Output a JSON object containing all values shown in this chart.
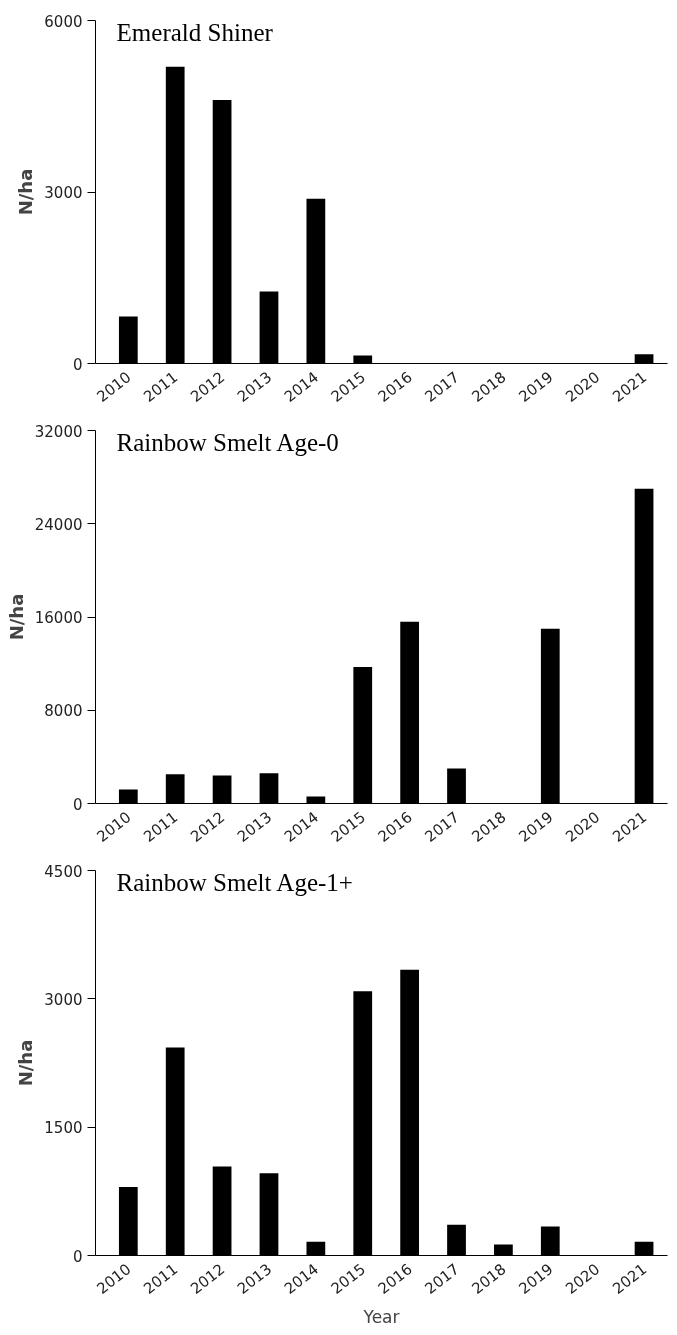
{
  "chart_data": [
    {
      "type": "bar",
      "title": "Emerald Shiner",
      "ylabel": "N/ha",
      "categories": [
        "2010",
        "2011",
        "2012",
        "2013",
        "2014",
        "2015",
        "2016",
        "2017",
        "2018",
        "2019",
        "2020",
        "2021"
      ],
      "values": [
        820,
        5190,
        4610,
        1260,
        2880,
        140,
        0,
        0,
        0,
        0,
        0,
        160
      ],
      "color": "#000000",
      "ylim": [
        0,
        6000
      ],
      "yticks": [
        0,
        3000,
        6000
      ]
    },
    {
      "type": "bar",
      "title": "Rainbow Smelt Age-0",
      "ylabel": "N/ha",
      "categories": [
        "2010",
        "2011",
        "2012",
        "2013",
        "2014",
        "2015",
        "2016",
        "2017",
        "2018",
        "2019",
        "2020",
        "2021"
      ],
      "values": [
        1200,
        2500,
        2400,
        2600,
        600,
        11700,
        15600,
        3000,
        0,
        15000,
        0,
        27000
      ],
      "color": "#000000",
      "ylim": [
        0,
        32000
      ],
      "yticks": [
        0,
        8000,
        16000,
        24000,
        32000
      ]
    },
    {
      "type": "bar",
      "title": "Rainbow Smelt Age-1+",
      "ylabel": "N/ha",
      "xlabel": "Year",
      "categories": [
        "2010",
        "2011",
        "2012",
        "2013",
        "2014",
        "2015",
        "2016",
        "2017",
        "2018",
        "2019",
        "2020",
        "2021"
      ],
      "values": [
        800,
        2430,
        1040,
        960,
        160,
        3090,
        3340,
        360,
        130,
        340,
        0,
        160
      ],
      "color": "#000000",
      "ylim": [
        0,
        4500
      ],
      "yticks": [
        0,
        1500,
        3000,
        4500
      ]
    }
  ]
}
